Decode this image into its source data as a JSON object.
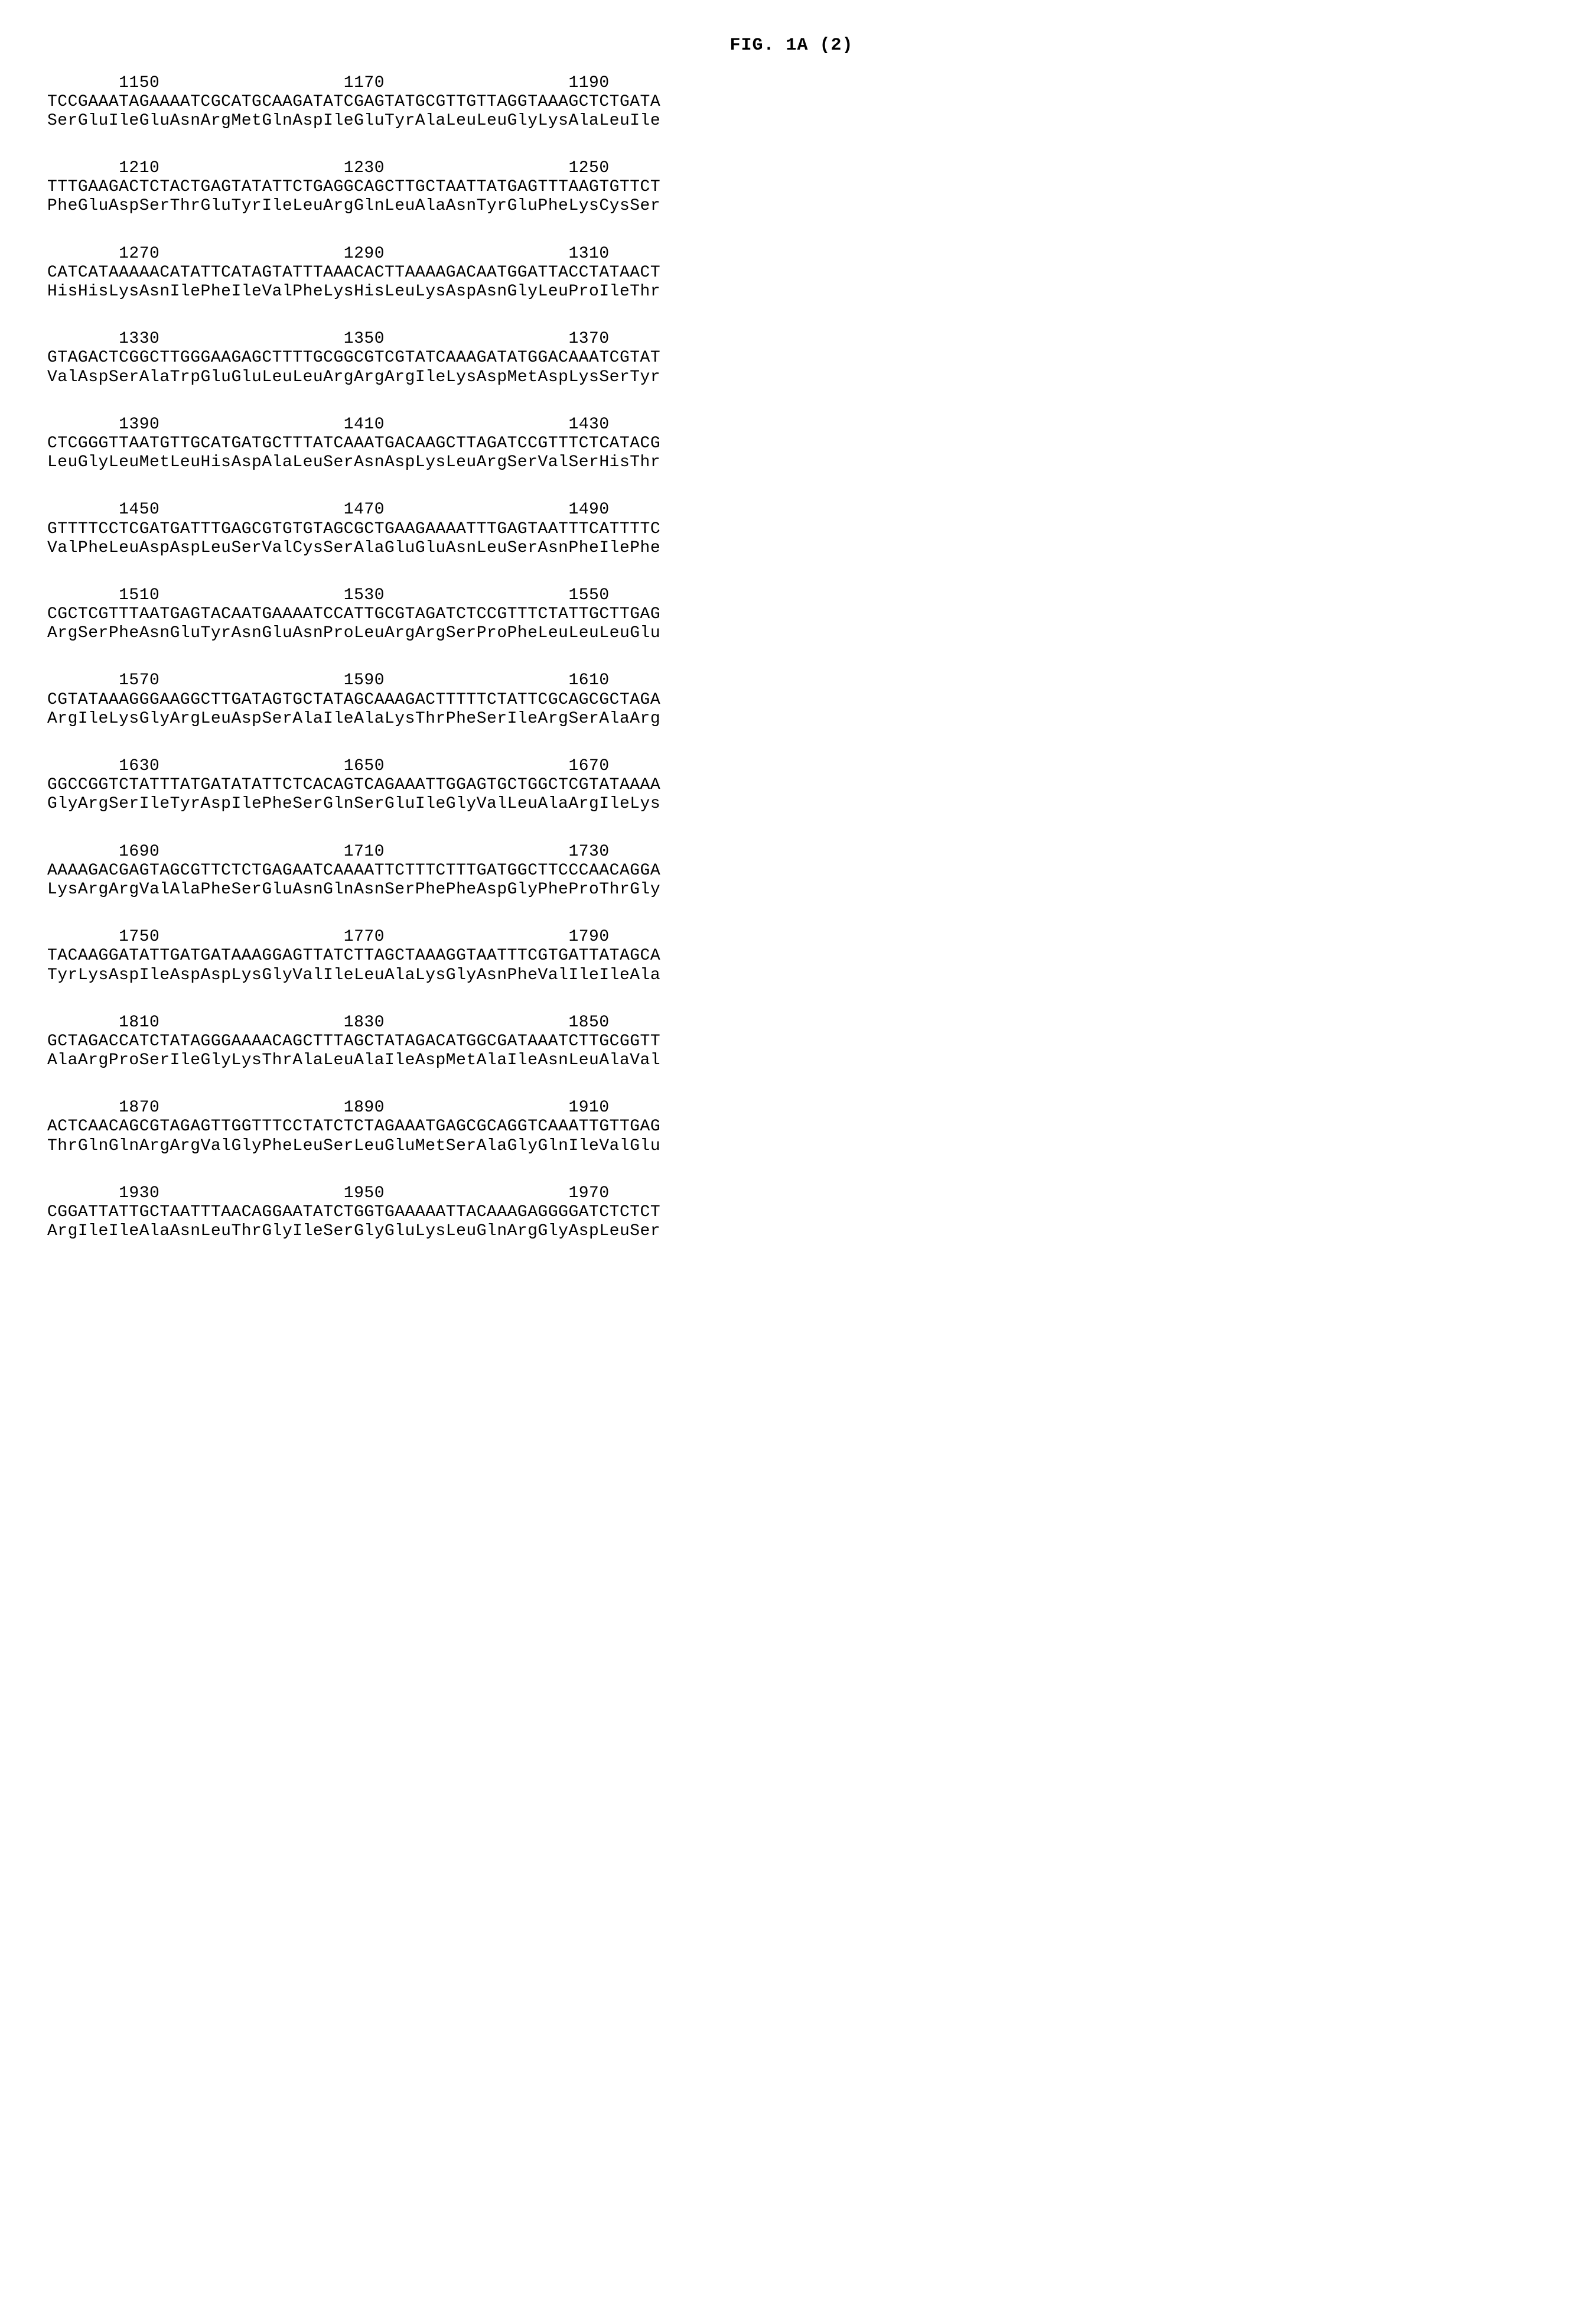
{
  "title": "FIG. 1A (2)",
  "font_family": "Courier New",
  "font_size_pt": 28,
  "text_color": "#000000",
  "background_color": "#ffffff",
  "blocks": [
    {
      "positions": "       1150                  1170                  1190",
      "nucleotide": "TCCGAAATAGAAAATCGCATGCAAGATATCGAGTATGCGTTGTTAGGTAAAGCTCTGATA",
      "amino": "SerGluIleGluAsnArgMetGlnAspIleGluTyrAlaLeuLeuGlyLysAlaLeuIle"
    },
    {
      "positions": "       1210                  1230                  1250",
      "nucleotide": "TTTGAAGACTCTACTGAGTATATTCTGAGGCAGCTTGCTAATTATGAGTTTAAGTGTTCT",
      "amino": "PheGluAspSerThrGluTyrIleLeuArgGlnLeuAlaAsnTyrGluPheLysCysSer"
    },
    {
      "positions": "       1270                  1290                  1310",
      "nucleotide": "CATCATAAAAACATATTCATAGTATTTAAACACTTAAAAGACAATGGATTACCTATAACT",
      "amino": "HisHisLysAsnIlePheIleValPheLysHisLeuLysAspAsnGlyLeuProIleThr"
    },
    {
      "positions": "       1330                  1350                  1370",
      "nucleotide": "GTAGACTCGGCTTGGGAAGAGCTTTTGCGGCGTCGTATCAAAGATATGGACAAATCGTAT",
      "amino": "ValAspSerAlaTrpGluGluLeuLeuArgArgArgIleLysAspMetAspLysSerTyr"
    },
    {
      "positions": "       1390                  1410                  1430",
      "nucleotide": "CTCGGGTTAATGTTGCATGATGCTTTATCAAATGACAAGCTTAGATCCGTTTCTCATACG",
      "amino": "LeuGlyLeuMetLeuHisAspAlaLeuSerAsnAspLysLeuArgSerValSerHisThr"
    },
    {
      "positions": "       1450                  1470                  1490",
      "nucleotide": "GTTTTCCTCGATGATTTGAGCGTGTGTAGCGCTGAAGAAAATTTGAGTAATTTCATTTTC",
      "amino": "ValPheLeuAspAspLeuSerValCysSerAlaGluGluAsnLeuSerAsnPheIlePhe"
    },
    {
      "positions": "       1510                  1530                  1550",
      "nucleotide": "CGCTCGTTTAATGAGTACAATGAAAATCCATTGCGTAGATCTCCGTTTCTATTGCTTGAG",
      "amino": "ArgSerPheAsnGluTyrAsnGluAsnProLeuArgArgSerProPheLeuLeuLeuGlu"
    },
    {
      "positions": "       1570                  1590                  1610",
      "nucleotide": "CGTATAAAGGGAAGGCTTGATAGTGCTATAGCAAAGACTTTTTCTATTCGCAGCGCTAGA",
      "amino": "ArgIleLysGlyArgLeuAspSerAlaIleAlaLysThrPheSerIleArgSerAlaArg"
    },
    {
      "positions": "       1630                  1650                  1670",
      "nucleotide": "GGCCGGTCTATTTATGATATATTCTCACAGTCAGAAATTGGAGTGCTGGCTCGTATAAAA",
      "amino": "GlyArgSerIleTyrAspIlePheSerGlnSerGluIleGlyValLeuAlaArgIleLys"
    },
    {
      "positions": "       1690                  1710                  1730",
      "nucleotide": "AAAAGACGAGTAGCGTTCTCTGAGAATCAAAATTCTTTCTTTGATGGCTTCCCAACAGGA",
      "amino": "LysArgArgValAlaPheSerGluAsnGlnAsnSerPhePheAspGlyPheProThrGly"
    },
    {
      "positions": "       1750                  1770                  1790",
      "nucleotide": "TACAAGGATATTGATGATAAAGGAGTTATCTTAGCTAAAGGTAATTTCGTGATTATAGCA",
      "amino": "TyrLysAspIleAspAspLysGlyValIleLeuAlaLysGlyAsnPheValIleIleAla"
    },
    {
      "positions": "       1810                  1830                  1850",
      "nucleotide": "GCTAGACCATCTATAGGGAAAACAGCTTTAGCTATAGACATGGCGATAAATCTTGCGGTT",
      "amino": "AlaArgProSerIleGlyLysThrAlaLeuAlaIleAspMetAlaIleAsnLeuAlaVal"
    },
    {
      "positions": "       1870                  1890                  1910",
      "nucleotide": "ACTCAACAGCGTAGAGTTGGTTTCCTATCTCTAGAAATGAGCGCAGGTCAAATTGTTGAG",
      "amino": "ThrGlnGlnArgArgValGlyPheLeuSerLeuGluMetSerAlaGlyGlnIleValGlu"
    },
    {
      "positions": "       1930                  1950                  1970",
      "nucleotide": "CGGATTATTGCTAATTTAACAGGAATATCTGGTGAAAAATTACAAAGAGGGGATCTCTCT",
      "amino": "ArgIleIleAlaAsnLeuThrGlyIleSerGlyGluLysLeuGlnArgGlyAspLeuSer"
    }
  ]
}
